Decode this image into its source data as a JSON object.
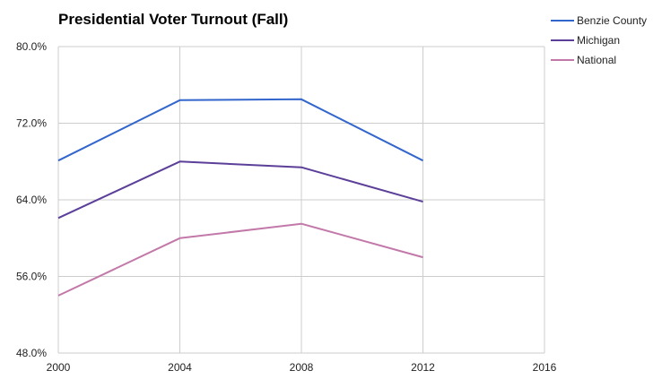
{
  "chart_data": {
    "type": "line",
    "title": "Presidential Voter Turnout (Fall)",
    "xlabel": "",
    "ylabel": "",
    "x": [
      2000,
      2004,
      2008,
      2012
    ],
    "xlim": [
      2000,
      2016
    ],
    "xticks": [
      2000,
      2004,
      2008,
      2012,
      2016
    ],
    "xtick_labels": [
      "2000",
      "2004",
      "2008",
      "2012",
      "2016"
    ],
    "ylim": [
      48,
      80
    ],
    "yticks": [
      48,
      56,
      64,
      72,
      80
    ],
    "ytick_labels": [
      "48.0%",
      "56.0%",
      "64.0%",
      "72.0%",
      "80.0%"
    ],
    "grid": true,
    "legend_position": "right",
    "series": [
      {
        "name": "Benzie County",
        "color": "#3366cc",
        "values": [
          68.1,
          74.4,
          74.5,
          68.1
        ]
      },
      {
        "name": "Michigan",
        "color": "#5b3f99",
        "values": [
          62.1,
          68.0,
          67.4,
          63.8
        ]
      },
      {
        "name": "National",
        "color": "#c278a9",
        "values": [
          54.0,
          60.0,
          61.5,
          58.0
        ]
      }
    ]
  }
}
